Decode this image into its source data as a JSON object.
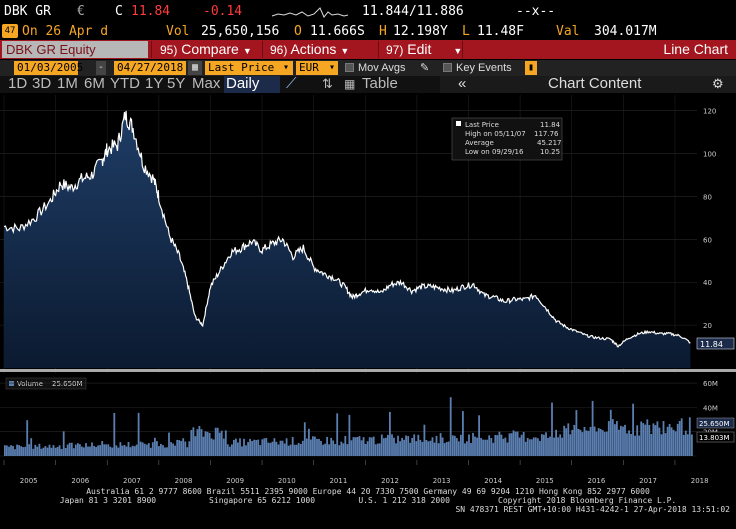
{
  "quote": {
    "ticker": "DBK GR",
    "currency_symbol": "€",
    "last_label": "C",
    "last_value": "11.84",
    "change": "-0.14",
    "bid_ask": "11.844/11.886",
    "trailing": "--x--"
  },
  "row2": {
    "flag_code": "47",
    "date_text": "On 26 Apr d",
    "vol_label": "Vol",
    "vol_value": "25,650,156",
    "open_label": "O",
    "open_value": "11.666S",
    "high_label": "H",
    "high_value": "12.198Y",
    "low_label": "L",
    "low_value": "11.48F",
    "val_label": "Val",
    "val_value": "304.017M"
  },
  "menu": {
    "security": "DBK GR Equity",
    "items": [
      {
        "num": "95)",
        "label": "Compare"
      },
      {
        "num": "96)",
        "label": "Actions"
      },
      {
        "num": "97)",
        "label": "Edit"
      }
    ],
    "right_title": "Line Chart"
  },
  "controls": {
    "start_date": "01/03/2005",
    "end_date": "04/27/2018",
    "price_field": "Last Price",
    "currency": "EUR",
    "mov_avgs": "Mov Avgs",
    "key_events": "Key Events"
  },
  "periods": {
    "items": [
      "1D",
      "3D",
      "1M",
      "6M",
      "YTD",
      "1Y",
      "5Y",
      "Max"
    ],
    "frequency": "Daily",
    "table_label": "Table",
    "chart_content": "Chart Content"
  },
  "legend": {
    "last_price_label": "Last Price",
    "last_price_value": "11.84",
    "high_label": "High on 05/11/07",
    "high_value": "117.76",
    "average_label": "Average",
    "average_value": "45.217",
    "low_label": "Low on 09/29/16",
    "low_value": "10.25",
    "volume_label": "Volume",
    "volume_value": "25.650M",
    "volume_ma_value": "13.803M"
  },
  "footer": {
    "line1": "Australia 61 2 9777 8600 Brazil 5511 2395 9000 Europe 44 20 7330 7500 Germany 49 69 9204 1210 Hong Kong 852 2977 6000",
    "line2": "Japan 81 3 3201 8900           Singapore 65 6212 1000         U.S. 1 212 318 2000          Copyright 2018 Bloomberg Finance L.P.",
    "line3": "SN 478371 REST GMT+10:00 H431-4242-1 27-Apr-2018 13:51:02"
  },
  "chart_data": {
    "type": "area",
    "price_axis": {
      "ticks": [
        20,
        40,
        60,
        80,
        100,
        120
      ],
      "ylim": [
        0,
        125
      ]
    },
    "volume_axis": {
      "ticks": [
        "20M",
        "40M",
        "60M"
      ]
    },
    "x_labels": [
      "2005",
      "2006",
      "2007",
      "2008",
      "2009",
      "2010",
      "2011",
      "2012",
      "2013",
      "2014",
      "2015",
      "2016",
      "2017",
      "2018"
    ],
    "price_series": {
      "name": "Last Price",
      "x": [
        2005.0,
        2005.3,
        2005.6,
        2005.9,
        2006.1,
        2006.3,
        2006.5,
        2006.7,
        2006.9,
        2007.0,
        2007.2,
        2007.35,
        2007.5,
        2007.7,
        2007.9,
        2008.0,
        2008.2,
        2008.4,
        2008.55,
        2008.7,
        2008.85,
        2009.0,
        2009.2,
        2009.4,
        2009.6,
        2009.8,
        2010.0,
        2010.2,
        2010.4,
        2010.6,
        2010.8,
        2011.0,
        2011.2,
        2011.4,
        2011.6,
        2011.75,
        2011.9,
        2012.1,
        2012.3,
        2012.5,
        2012.7,
        2012.9,
        2013.1,
        2013.3,
        2013.5,
        2013.7,
        2013.9,
        2014.1,
        2014.3,
        2014.5,
        2014.7,
        2014.9,
        2015.1,
        2015.3,
        2015.5,
        2015.7,
        2015.9,
        2016.1,
        2016.3,
        2016.5,
        2016.75,
        2016.9,
        2017.1,
        2017.3,
        2017.5,
        2017.7,
        2017.9,
        2018.1,
        2018.3
      ],
      "y": [
        66,
        65,
        70,
        78,
        86,
        84,
        88,
        90,
        97,
        102,
        104,
        117.76,
        112,
        95,
        88,
        80,
        62,
        52,
        40,
        24,
        20,
        38,
        46,
        54,
        56,
        59,
        55,
        58,
        60,
        52,
        56,
        47,
        44,
        42,
        38,
        33,
        35,
        37,
        35,
        39,
        40,
        36,
        38,
        38,
        37,
        36,
        38,
        39,
        34,
        33,
        31,
        32,
        32,
        34,
        28,
        22,
        19,
        17,
        15,
        14,
        13.5,
        10.25,
        14,
        16,
        17,
        16,
        16,
        15,
        11.84
      ]
    },
    "price_stats": {
      "last": 11.84,
      "high": 117.76,
      "high_date": "05/11/07",
      "average": 45.217,
      "low": 10.25,
      "low_date": "09/29/16"
    },
    "volume_series": {
      "name": "Volume",
      "unit": "M",
      "last": 25.65,
      "moving_average_last": 13.803
    }
  },
  "colors": {
    "menu_red": "#a3161f",
    "amber": "#f5a623",
    "area_fill_top": "#1f3d66",
    "area_fill_bottom": "#0b1a30",
    "line": "#ffffff",
    "volume_fill": "#5a7fb0"
  }
}
